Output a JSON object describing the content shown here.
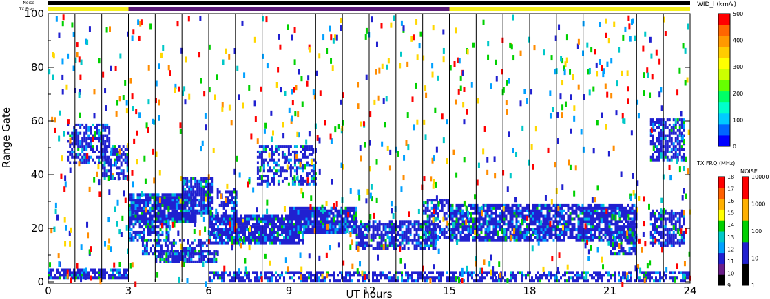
{
  "chart_data": {
    "type": "heatmap",
    "xlabel": "UT hours",
    "ylabel": "Range Gate",
    "xlim": [
      0,
      24
    ],
    "ylim": [
      0,
      100
    ],
    "x_ticks": [
      "0",
      "3",
      "6",
      "9",
      "12",
      "15",
      "18",
      "21",
      "24"
    ],
    "x_tick_values": [
      0,
      3,
      6,
      9,
      12,
      15,
      18,
      21,
      24
    ],
    "y_ticks": [
      "0",
      "20",
      "40",
      "60",
      "80",
      "100"
    ],
    "y_tick_values": [
      0,
      20,
      40,
      60,
      80,
      100
    ],
    "scan_boundaries_ut": [
      1,
      2,
      3,
      4,
      5,
      6,
      7,
      8,
      9,
      10,
      11,
      12,
      13,
      14,
      15,
      16,
      17,
      18,
      19,
      20,
      21,
      22,
      23,
      24
    ],
    "strip_labels": {
      "noise": "Noise",
      "tx_freq": "TX Freq"
    },
    "noise_strip_color": "#000000",
    "tx_freq_strip": [
      {
        "from": 0,
        "to": 3,
        "color": "#f5f01e"
      },
      {
        "from": 3,
        "to": 15,
        "color": "#5a1a78"
      },
      {
        "from": 15,
        "to": 24,
        "color": "#f5f01e"
      }
    ],
    "echo_bands": [
      {
        "t0": 0.0,
        "t1": 3.0,
        "g0": 1,
        "g1": 4,
        "color": "#2020d0",
        "density": 0.8
      },
      {
        "t0": 0.7,
        "t1": 2.3,
        "g0": 44,
        "g1": 58,
        "color": "#2020d0",
        "density": 0.6
      },
      {
        "t0": 2.0,
        "t1": 3.0,
        "g0": 38,
        "g1": 50,
        "color": "#2020d0",
        "density": 0.6
      },
      {
        "t0": 3.0,
        "t1": 5.5,
        "g0": 22,
        "g1": 32,
        "color": "#2020d0",
        "density": 0.9
      },
      {
        "t0": 5.0,
        "t1": 6.1,
        "g0": 25,
        "g1": 38,
        "color": "#2020d0",
        "density": 0.8
      },
      {
        "t0": 3.0,
        "t1": 4.5,
        "g0": 15,
        "g1": 22,
        "color": "#2020d0",
        "density": 0.7
      },
      {
        "t0": 3.5,
        "t1": 6.0,
        "g0": 10,
        "g1": 15,
        "color": "#2020d0",
        "density": 0.6
      },
      {
        "t0": 4.0,
        "t1": 6.3,
        "g0": 7,
        "g1": 11,
        "color": "#2020d0",
        "density": 0.7
      },
      {
        "t0": 6.0,
        "t1": 9.5,
        "g0": 14,
        "g1": 24,
        "color": "#2020d0",
        "density": 0.9
      },
      {
        "t0": 6.3,
        "t1": 7.0,
        "g0": 22,
        "g1": 34,
        "color": "#2020d0",
        "density": 0.6
      },
      {
        "t0": 9.0,
        "t1": 11.5,
        "g0": 18,
        "g1": 27,
        "color": "#2020d0",
        "density": 0.9
      },
      {
        "t0": 11.5,
        "t1": 14.5,
        "g0": 12,
        "g1": 22,
        "color": "#2020d0",
        "density": 0.7
      },
      {
        "t0": 7.8,
        "t1": 10.0,
        "g0": 36,
        "g1": 50,
        "color": "#2020d0",
        "density": 0.5
      },
      {
        "t0": 14.0,
        "t1": 15.0,
        "g0": 16,
        "g1": 30,
        "color": "#2020d0",
        "density": 0.6
      },
      {
        "t0": 6.0,
        "t1": 24.0,
        "g0": 0,
        "g1": 3,
        "color": "#2020d0",
        "density": 0.6
      },
      {
        "t0": 15.0,
        "t1": 22.0,
        "g0": 15,
        "g1": 28,
        "color": "#2020d0",
        "density": 0.8
      },
      {
        "t0": 21.0,
        "t1": 22.0,
        "g0": 10,
        "g1": 18,
        "color": "#2020d0",
        "density": 0.7
      },
      {
        "t0": 22.5,
        "t1": 23.8,
        "g0": 45,
        "g1": 60,
        "color": "#2020d0",
        "density": 0.7
      },
      {
        "t0": 22.5,
        "t1": 23.8,
        "g0": 13,
        "g1": 26,
        "color": "#2020d0",
        "density": 0.7
      }
    ],
    "scatter_palette": [
      "#ff0000",
      "#ff8c00",
      "#ffd700",
      "#00d000",
      "#00c8c8",
      "#00a0ff",
      "#2020d0"
    ],
    "colorbars": [
      {
        "title": "WID_l (km/s)",
        "ticks": [
          "0",
          "100",
          "200",
          "300",
          "400",
          "500"
        ],
        "colors": [
          "#0000ff",
          "#0066ff",
          "#00ccff",
          "#00ffcc",
          "#00ff66",
          "#66ff00",
          "#ccff00",
          "#ffff00",
          "#ffcc00",
          "#ff9900",
          "#ff6600",
          "#ff0000"
        ]
      },
      {
        "title": "TX FRQ (MHz)",
        "ticks": [
          "9",
          "10",
          "11",
          "12",
          "13",
          "14",
          "15",
          "16",
          "17",
          "18"
        ],
        "colors": [
          "#000000",
          "#6a1e8a",
          "#2020d0",
          "#00a0ff",
          "#00c8c8",
          "#00d000",
          "#ffff00",
          "#ffb000",
          "#ff6000",
          "#ff0000"
        ]
      },
      {
        "title": "NOISE",
        "ticks": [
          "1",
          "10",
          "100",
          "1000",
          "10000"
        ],
        "colors": [
          "#000000",
          "#2020d0",
          "#00d000",
          "#ffb000",
          "#ff0000"
        ]
      }
    ]
  }
}
